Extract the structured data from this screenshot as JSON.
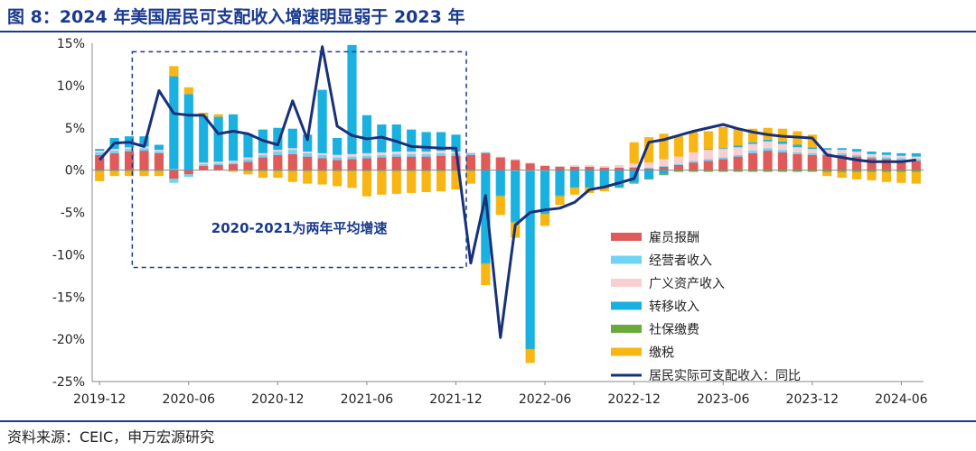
{
  "figure": {
    "title": "图 8：2024 年美国居民可支配收入增速明显弱于 2023 年",
    "source": "资料来源：CEIC，申万宏源研究"
  },
  "chart_data": {
    "type": "bar",
    "stacked": true,
    "title": "",
    "xlabel": "",
    "ylabel": "",
    "ylim": [
      -25,
      15
    ],
    "y_ticks": [
      "-25%",
      "-20%",
      "-15%",
      "-10%",
      "-5%",
      "0%",
      "5%",
      "10%",
      "15%"
    ],
    "x_tick_labels": [
      "2019-12",
      "2020-06",
      "2020-12",
      "2021-06",
      "2021-12",
      "2022-06",
      "2022-12",
      "2023-06",
      "2023-12",
      "2024-06"
    ],
    "categories": [
      "2019-12",
      "2020-01",
      "2020-02",
      "2020-03",
      "2020-04",
      "2020-05",
      "2020-06",
      "2020-07",
      "2020-08",
      "2020-09",
      "2020-10",
      "2020-11",
      "2020-12",
      "2021-01",
      "2021-02",
      "2021-03",
      "2021-04",
      "2021-05",
      "2021-06",
      "2021-07",
      "2021-08",
      "2021-09",
      "2021-10",
      "2021-11",
      "2021-12",
      "2022-01",
      "2022-02",
      "2022-03",
      "2022-04",
      "2022-05",
      "2022-06",
      "2022-07",
      "2022-08",
      "2022-09",
      "2022-10",
      "2022-11",
      "2022-12",
      "2023-01",
      "2023-02",
      "2023-03",
      "2023-04",
      "2023-05",
      "2023-06",
      "2023-07",
      "2023-08",
      "2023-09",
      "2023-10",
      "2023-11",
      "2023-12",
      "2024-01",
      "2024-02",
      "2024-03",
      "2024-04",
      "2024-05",
      "2024-06",
      "2024-07"
    ],
    "series": [
      {
        "name": "雇员报酬",
        "kind": "bar",
        "color": "#e05a5a",
        "values": [
          1.8,
          2.0,
          2.2,
          2.3,
          2.0,
          -1.0,
          -0.5,
          0.5,
          0.6,
          0.7,
          1.0,
          1.5,
          1.8,
          1.9,
          1.6,
          1.4,
          1.2,
          1.3,
          1.4,
          1.5,
          1.6,
          1.6,
          1.6,
          1.7,
          1.7,
          1.8,
          2.0,
          1.5,
          1.2,
          0.8,
          0.5,
          0.4,
          0.4,
          0.4,
          0.3,
          0.3,
          0.3,
          0.2,
          0.4,
          0.6,
          0.9,
          1.1,
          1.3,
          1.6,
          2.0,
          2.3,
          2.1,
          1.9,
          1.8,
          1.8,
          1.8,
          1.6,
          1.4,
          1.3,
          1.2,
          1.1
        ]
      },
      {
        "name": "经营者收入",
        "kind": "bar",
        "color": "#6fd3f5",
        "values": [
          0.3,
          0.3,
          0.3,
          0.3,
          0.2,
          -0.5,
          -0.3,
          0.2,
          0.2,
          0.2,
          0.3,
          0.3,
          0.4,
          0.5,
          0.4,
          0.4,
          0.3,
          0.3,
          0.3,
          0.3,
          0.3,
          0.3,
          0.3,
          0.3,
          0.3,
          0.2,
          0.1,
          0.0,
          -0.1,
          -0.1,
          -0.1,
          0.0,
          0.0,
          0.0,
          0.0,
          0.0,
          0.1,
          0.1,
          0.1,
          0.1,
          0.2,
          0.2,
          0.2,
          0.2,
          0.3,
          0.3,
          0.3,
          0.2,
          0.2,
          0.2,
          0.2,
          0.2,
          0.2,
          0.2,
          0.2,
          0.2
        ]
      },
      {
        "name": "广义资产收入",
        "kind": "bar",
        "color": "#f8d0d2",
        "values": [
          0.2,
          0.2,
          0.2,
          0.2,
          0.2,
          0.1,
          0.0,
          0.2,
          0.2,
          0.2,
          0.2,
          0.2,
          0.2,
          0.2,
          0.2,
          0.2,
          0.3,
          0.3,
          0.3,
          0.3,
          0.3,
          0.3,
          0.3,
          0.3,
          0.2,
          0.1,
          0.1,
          0.1,
          0.1,
          0.1,
          0.1,
          0.1,
          0.2,
          0.2,
          0.2,
          0.3,
          0.4,
          0.6,
          0.8,
          0.9,
          1.0,
          1.1,
          1.0,
          0.9,
          0.8,
          0.8,
          0.7,
          0.6,
          0.5,
          0.4,
          0.4,
          0.4,
          0.3,
          0.3,
          0.3,
          0.3
        ]
      },
      {
        "name": "转移收入",
        "kind": "bar",
        "color": "#1ab0e0",
        "values": [
          0.2,
          1.3,
          1.3,
          1.2,
          0.6,
          11.0,
          9.0,
          5.5,
          5.3,
          5.5,
          2.8,
          2.8,
          2.6,
          2.3,
          2.0,
          7.5,
          2.0,
          12.9,
          4.5,
          3.3,
          3.2,
          2.6,
          2.3,
          2.2,
          2.0,
          0.0,
          -11.0,
          -3.0,
          -6.0,
          -21.0,
          -5.0,
          -3.0,
          -2.0,
          -2.0,
          -2.0,
          -2.0,
          -1.5,
          -1.0,
          -0.5,
          0.0,
          0.0,
          0.1,
          0.1,
          0.2,
          0.2,
          0.2,
          0.3,
          0.3,
          0.2,
          0.2,
          0.2,
          0.3,
          0.3,
          0.3,
          0.3,
          0.4
        ]
      },
      {
        "name": "社保缴费",
        "kind": "bar",
        "color": "#6aaa3a",
        "values": [
          -0.1,
          -0.1,
          -0.1,
          -0.1,
          -0.1,
          0.0,
          0.0,
          0.0,
          0.0,
          0.0,
          -0.1,
          -0.1,
          -0.1,
          -0.1,
          -0.1,
          -0.1,
          -0.1,
          -0.1,
          -0.1,
          -0.1,
          -0.1,
          -0.1,
          -0.1,
          -0.1,
          -0.1,
          -0.1,
          -0.1,
          -0.1,
          -0.1,
          -0.1,
          -0.1,
          -0.1,
          -0.1,
          -0.1,
          -0.1,
          -0.1,
          -0.1,
          -0.1,
          -0.1,
          -0.2,
          -0.2,
          -0.2,
          -0.2,
          -0.2,
          -0.2,
          -0.2,
          -0.2,
          -0.2,
          -0.2,
          -0.2,
          -0.2,
          -0.2,
          -0.2,
          -0.2,
          -0.2,
          -0.2
        ]
      },
      {
        "name": "缴税",
        "kind": "bar",
        "color": "#f7b614",
        "values": [
          -1.2,
          -0.6,
          -0.6,
          -0.6,
          -0.6,
          1.2,
          0.8,
          0.4,
          0.3,
          -0.2,
          -0.4,
          -0.8,
          -0.8,
          -1.3,
          -1.5,
          -1.6,
          -1.8,
          -2.0,
          -3.0,
          -2.8,
          -2.7,
          -2.6,
          -2.5,
          -2.4,
          -2.2,
          -1.5,
          -2.5,
          -2.2,
          -1.8,
          -1.6,
          -1.4,
          -1.0,
          -0.8,
          -0.6,
          -0.4,
          0.0,
          2.5,
          3.0,
          3.0,
          2.4,
          2.4,
          2.1,
          2.5,
          2.0,
          1.6,
          1.4,
          1.5,
          1.6,
          1.5,
          -0.5,
          -0.7,
          -0.9,
          -1.0,
          -1.2,
          -1.3,
          -1.4
        ]
      },
      {
        "name": "居民实际可支配收入：同比",
        "kind": "line",
        "color": "#17307a",
        "values": [
          1.2,
          3.2,
          3.3,
          2.8,
          9.4,
          6.7,
          6.5,
          6.5,
          4.3,
          4.6,
          4.3,
          3.5,
          3.0,
          8.2,
          3.6,
          14.6,
          5.2,
          4.1,
          3.7,
          3.9,
          3.4,
          2.8,
          2.7,
          2.6,
          2.6,
          -11.0,
          -3.0,
          -19.8,
          -6.5,
          -5.0,
          -4.7,
          -4.5,
          -3.8,
          -2.3,
          -2.0,
          -1.5,
          -1.0,
          3.3,
          3.6,
          4.1,
          4.6,
          5.0,
          5.4,
          4.9,
          4.5,
          4.2,
          4.0,
          3.9,
          3.8,
          1.8,
          1.5,
          1.2,
          1.0,
          1.0,
          1.0,
          1.2
        ]
      }
    ],
    "annotation": {
      "text": "2020-2021为两年平均增速",
      "from": "2020-03",
      "to": "2021-12",
      "ymin": -11.5,
      "ymax": 14
    }
  }
}
